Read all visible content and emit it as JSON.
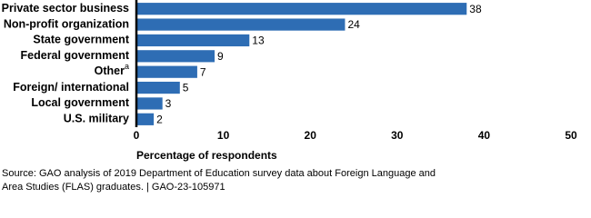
{
  "chart_data": {
    "type": "hbar",
    "categories": [
      "Private sector business",
      "Non-profit organization",
      "State government",
      "Federal government",
      "Other",
      "Foreign/ international",
      "Local government",
      "U.S. military"
    ],
    "values": [
      38,
      24,
      13,
      9,
      7,
      5,
      3,
      2
    ],
    "color": "#2e6db4",
    "annotations": [
      {
        "category": "Other",
        "text": "a"
      }
    ],
    "xlim": [
      0,
      50
    ],
    "xticks": [
      0,
      10,
      20,
      30,
      40,
      50
    ],
    "xlabel": "Percentage of respondents",
    "grid": false,
    "source": [
      "Source: GAO analysis of 2019 Department of Education survey data about Foreign Language and",
      "Area Studies (FLAS) graduates.  |  GAO-23-105971"
    ]
  }
}
